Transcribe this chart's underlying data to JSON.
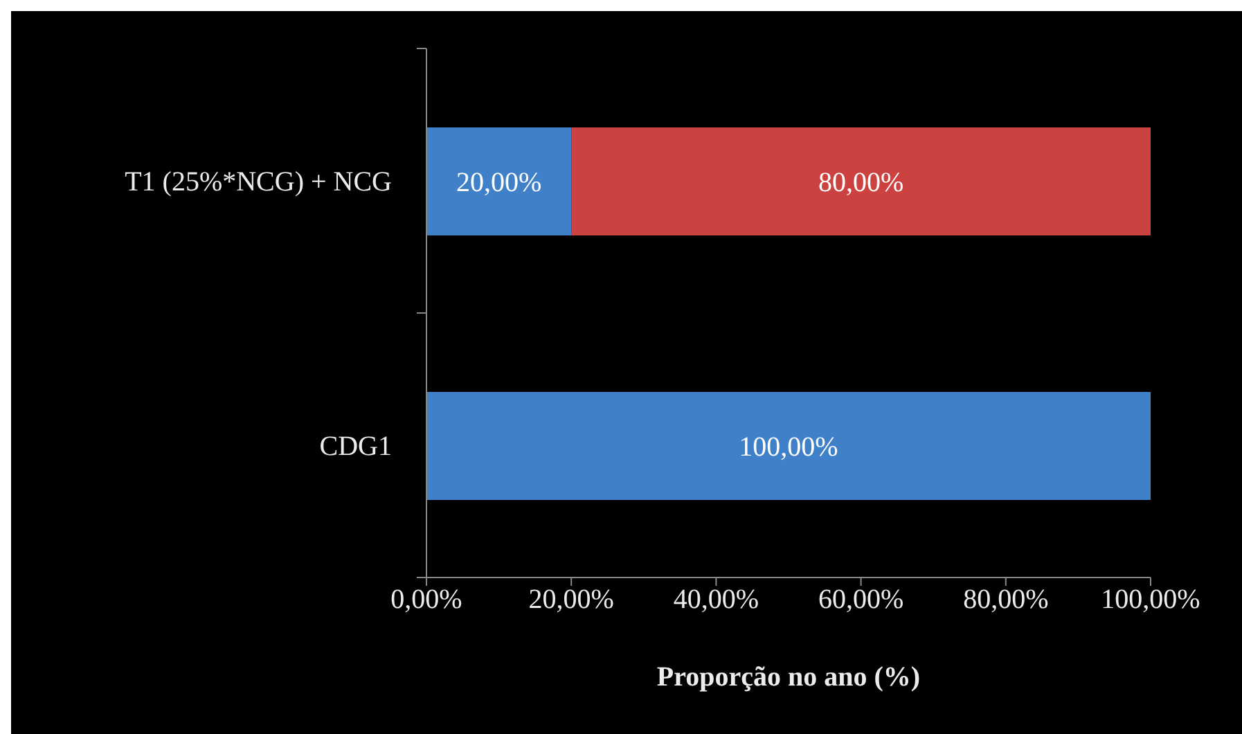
{
  "chart_data": {
    "type": "bar",
    "orientation": "horizontal",
    "stacked": true,
    "xlabel": "Proporção no ano (%)",
    "categories": [
      "T1 (25%*NCG) + NCG",
      "CDG1"
    ],
    "series": [
      {
        "color": "#4080c8",
        "values": [
          20,
          100
        ],
        "value_labels": [
          "20,00%",
          "100,00%"
        ]
      },
      {
        "color": "#cc4240",
        "values": [
          80,
          null
        ],
        "value_labels": [
          "80,00%",
          null
        ]
      }
    ],
    "xlim": [
      0,
      100
    ],
    "xticks": [
      {
        "value": 0,
        "label": "0,00%"
      },
      {
        "value": 20,
        "label": "20,00%"
      },
      {
        "value": 40,
        "label": "40,00%"
      },
      {
        "value": 60,
        "label": "60,00%"
      },
      {
        "value": 80,
        "label": "80,00%"
      },
      {
        "value": 100,
        "label": "100,00%"
      }
    ]
  }
}
